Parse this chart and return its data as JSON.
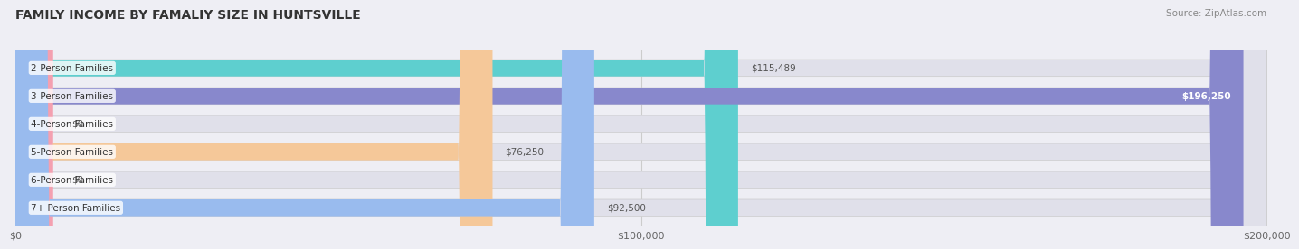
{
  "title": "FAMILY INCOME BY FAMALIY SIZE IN HUNTSVILLE",
  "source": "Source: ZipAtlas.com",
  "categories": [
    "2-Person Families",
    "3-Person Families",
    "4-Person Families",
    "5-Person Families",
    "6-Person Families",
    "7+ Person Families"
  ],
  "values": [
    115489,
    196250,
    0,
    76250,
    0,
    92500
  ],
  "bar_colors": [
    "#5ECFCF",
    "#8888CC",
    "#F4A0B0",
    "#F5C899",
    "#F4A0B0",
    "#99BBEE"
  ],
  "value_labels": [
    "$115,489",
    "$196,250",
    "$0",
    "$76,250",
    "$0",
    "$92,500"
  ],
  "value_label_inside": [
    false,
    true,
    false,
    false,
    false,
    false
  ],
  "xlim": [
    0,
    200000
  ],
  "xticks": [
    0,
    100000,
    200000
  ],
  "xtick_labels": [
    "$0",
    "$100,000",
    "$200,000"
  ],
  "background_color": "#eeeef4",
  "bar_background_color": "#e0e0ea",
  "title_fontsize": 10,
  "source_fontsize": 7.5,
  "label_fontsize": 7.5,
  "value_fontsize": 7.5,
  "bar_height": 0.6
}
